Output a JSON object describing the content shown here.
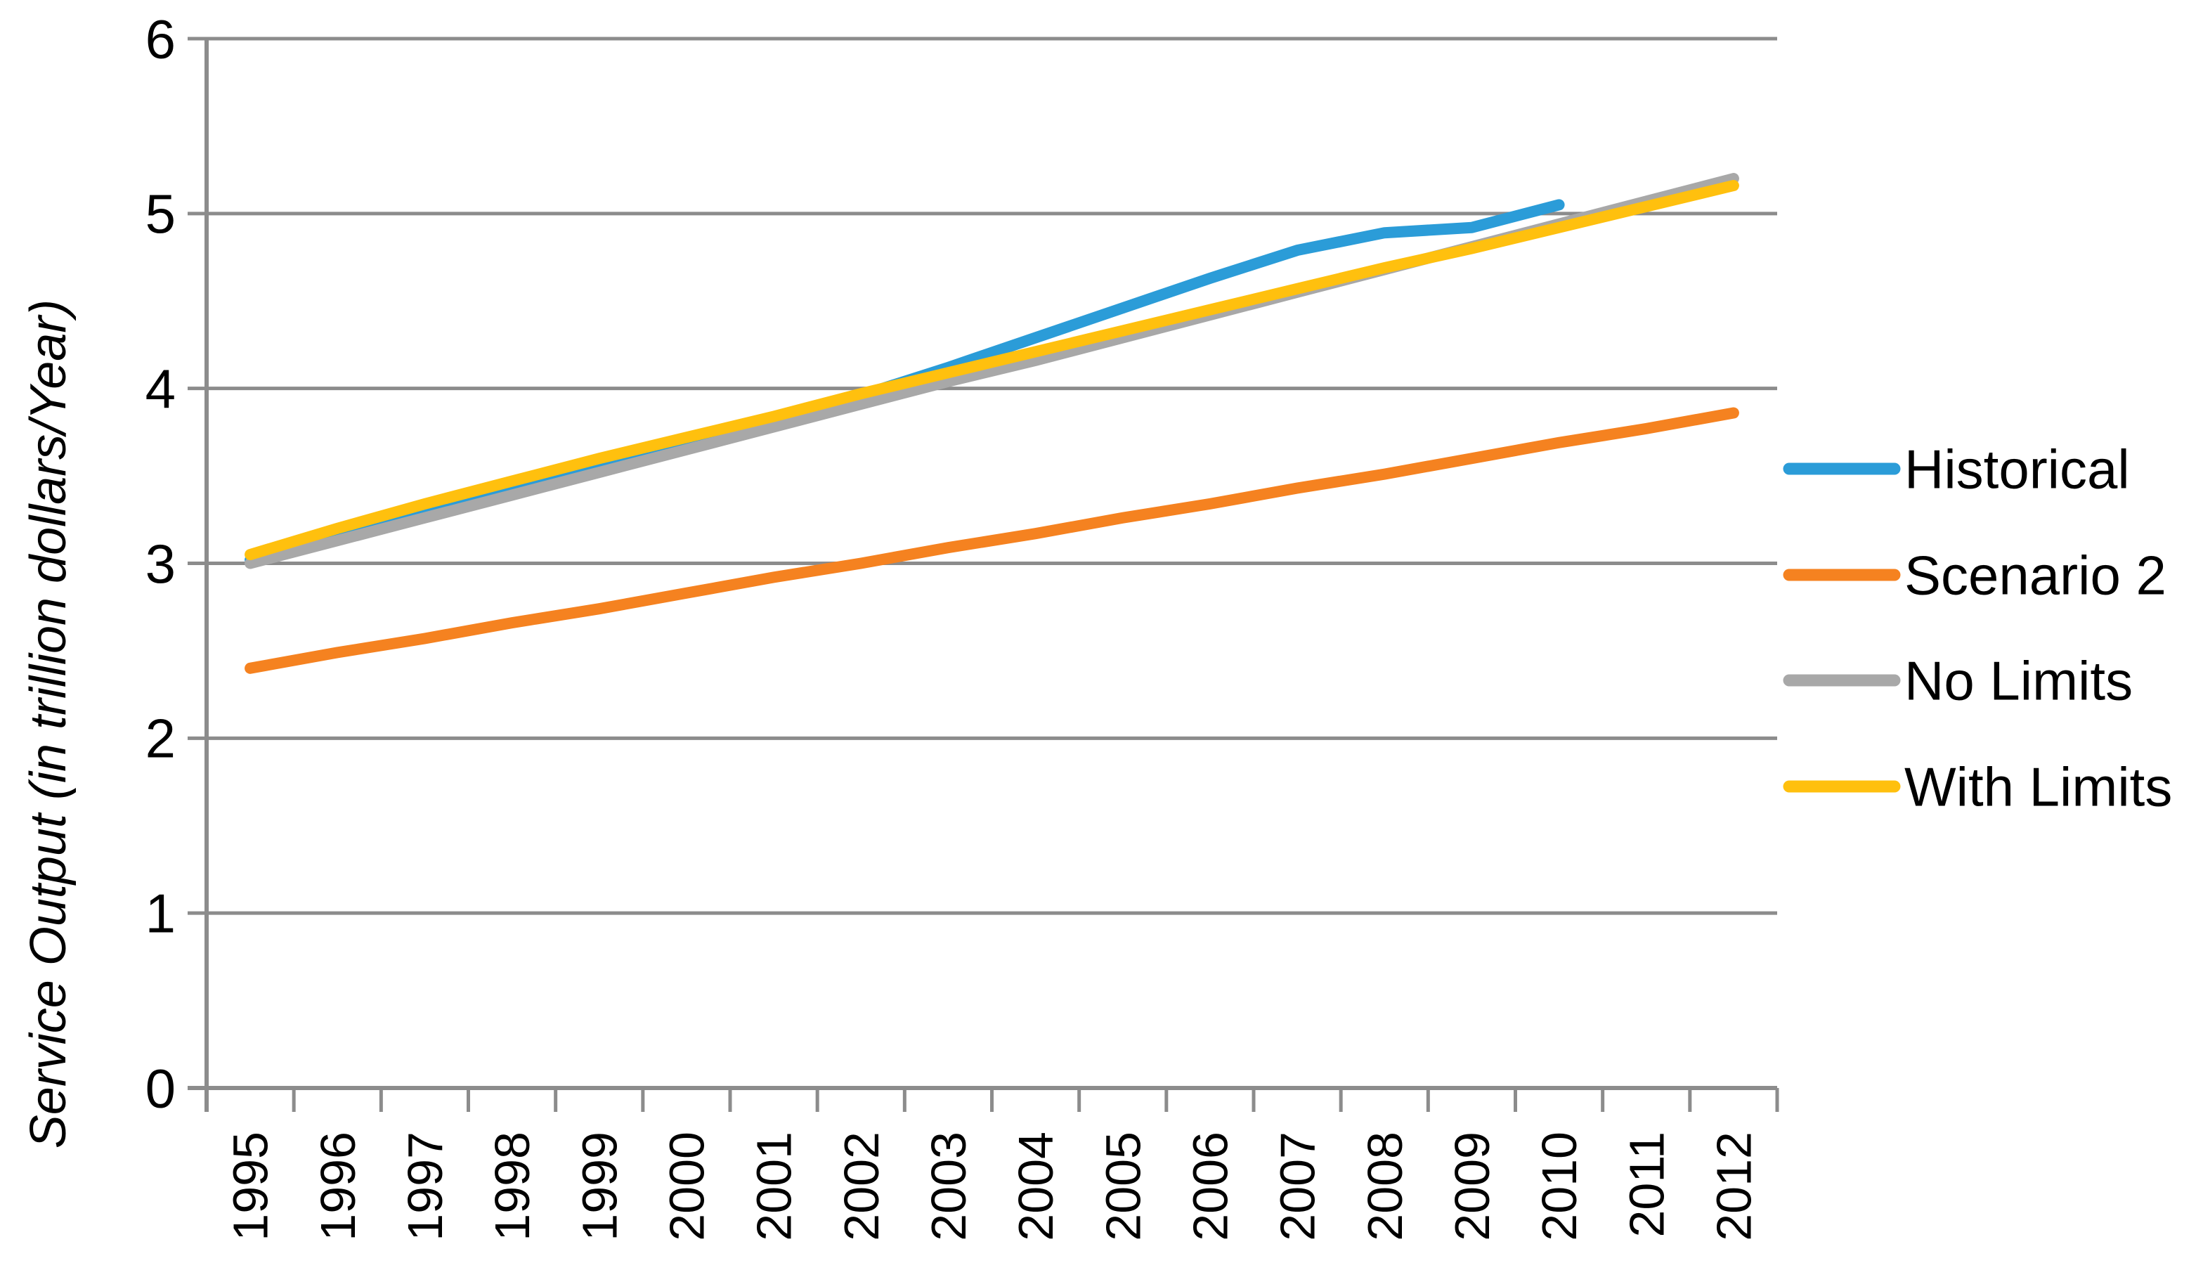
{
  "chart_data": {
    "type": "line",
    "title": "",
    "xlabel": "",
    "ylabel": "Service Output (in trillion dollars/Year)",
    "x": [
      1995,
      1996,
      1997,
      1998,
      1999,
      2000,
      2001,
      2002,
      2003,
      2004,
      2005,
      2006,
      2007,
      2008,
      2009,
      2010,
      2011,
      2012
    ],
    "ylim": [
      0,
      6
    ],
    "yticks": [
      0,
      1,
      2,
      3,
      4,
      5,
      6
    ],
    "grid": true,
    "legend_position": "right",
    "axis_color": "#8C8C8C",
    "series": [
      {
        "name": "Historical",
        "color": "#2B9CD8",
        "values": [
          3.02,
          3.16,
          3.3,
          3.43,
          3.56,
          3.69,
          3.82,
          3.96,
          4.12,
          4.29,
          4.46,
          4.63,
          4.79,
          4.89,
          4.92,
          5.05,
          null,
          null
        ]
      },
      {
        "name": "Scenario 2",
        "color": "#F58220",
        "values": [
          2.4,
          2.49,
          2.57,
          2.66,
          2.74,
          2.83,
          2.92,
          3.0,
          3.09,
          3.17,
          3.26,
          3.34,
          3.43,
          3.51,
          3.6,
          3.69,
          3.77,
          3.86
        ]
      },
      {
        "name": "No Limits",
        "color": "#A8A8A8",
        "values": [
          3.0,
          3.13,
          3.26,
          3.39,
          3.52,
          3.65,
          3.78,
          3.91,
          4.04,
          4.16,
          4.29,
          4.42,
          4.55,
          4.68,
          4.81,
          4.94,
          5.07,
          5.2
        ]
      },
      {
        "name": "With Limits",
        "color": "#FFC00E",
        "values": [
          3.05,
          3.2,
          3.34,
          3.47,
          3.6,
          3.72,
          3.84,
          3.97,
          4.09,
          4.21,
          4.33,
          4.45,
          4.57,
          4.69,
          4.8,
          4.92,
          5.04,
          5.16
        ]
      }
    ]
  }
}
